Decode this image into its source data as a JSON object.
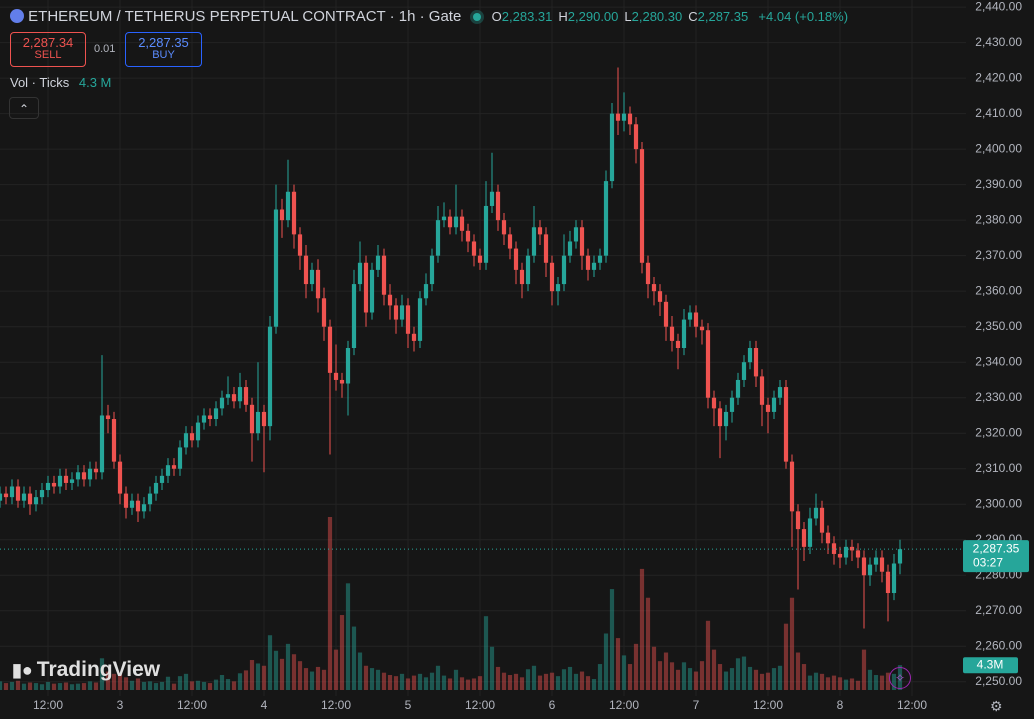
{
  "header": {
    "symbol": "ETHEREUM / TETHERUS PERPETUAL CONTRACT · 1h · Gate",
    "ohlc": [
      {
        "key": "O",
        "value": "2,283.31"
      },
      {
        "key": "H",
        "value": "2,290.00"
      },
      {
        "key": "L",
        "value": "2,280.30"
      },
      {
        "key": "C",
        "value": "2,287.35"
      }
    ],
    "change": "+4.04 (+0.18%)",
    "sell": {
      "price": "2,287.34",
      "label": "SELL"
    },
    "spread": "0.01",
    "buy": {
      "price": "2,287.35",
      "label": "BUY"
    },
    "volume_legend": {
      "name": "Vol · Ticks",
      "value": "4.3 M"
    }
  },
  "logo": "TradingView",
  "chart_data": {
    "type": "candlestick",
    "up_color": "#26a69a",
    "down_color": "#ef5350",
    "grid": true,
    "last_price_label": "2,287.35",
    "countdown": "03:27",
    "volume_scale_label": "4.3M",
    "xlim": [
      0,
      161
    ],
    "xticks": [
      {
        "value": 8,
        "label": "12:00"
      },
      {
        "value": 20,
        "label": "3"
      },
      {
        "value": 32,
        "label": "12:00"
      },
      {
        "value": 44,
        "label": "4"
      },
      {
        "value": 56,
        "label": "12:00"
      },
      {
        "value": 68,
        "label": "5"
      },
      {
        "value": 80,
        "label": "12:00"
      },
      {
        "value": 92,
        "label": "6"
      },
      {
        "value": 104,
        "label": "12:00"
      },
      {
        "value": 116,
        "label": "7"
      },
      {
        "value": 128,
        "label": "12:00"
      },
      {
        "value": 140,
        "label": "8"
      },
      {
        "value": 152,
        "label": "12:00"
      }
    ],
    "ylim": [
      2246,
      2442
    ],
    "yticks": [
      {
        "value": 2250,
        "label": "2,250.00"
      },
      {
        "value": 2260,
        "label": "2,260.00"
      },
      {
        "value": 2270,
        "label": "2,270.00"
      },
      {
        "value": 2280,
        "label": "2,280.00"
      },
      {
        "value": 2290,
        "label": "2,290.00"
      },
      {
        "value": 2300,
        "label": "2,300.00"
      },
      {
        "value": 2310,
        "label": "2,310.00"
      },
      {
        "value": 2320,
        "label": "2,320.00"
      },
      {
        "value": 2330,
        "label": "2,330.00"
      },
      {
        "value": 2340,
        "label": "2,340.00"
      },
      {
        "value": 2350,
        "label": "2,350.00"
      },
      {
        "value": 2360,
        "label": "2,360.00"
      },
      {
        "value": 2370,
        "label": "2,370.00"
      },
      {
        "value": 2380,
        "label": "2,380.00"
      },
      {
        "value": 2390,
        "label": "2,390.00"
      },
      {
        "value": 2400,
        "label": "2,400.00"
      },
      {
        "value": 2410,
        "label": "2,410.00"
      },
      {
        "value": 2420,
        "label": "2,420.00"
      },
      {
        "value": 2430,
        "label": "2,430.00"
      },
      {
        "value": 2440,
        "label": "2,440.00"
      }
    ],
    "open": [
      2301,
      2303,
      2302,
      2305,
      2301,
      2303,
      2300,
      2302,
      2304,
      2306,
      2305,
      2308,
      2306,
      2307,
      2309,
      2307,
      2310,
      2309,
      2325,
      2324,
      2312,
      2303,
      2299,
      2301,
      2298,
      2300,
      2303,
      2306,
      2308,
      2311,
      2310,
      2316,
      2320,
      2318,
      2323,
      2325,
      2324,
      2327,
      2330,
      2331,
      2329,
      2333,
      2328,
      2320,
      2326,
      2322,
      2350,
      2383,
      2380,
      2388,
      2376,
      2370,
      2362,
      2366,
      2358,
      2350,
      2337,
      2335,
      2334,
      2344,
      2362,
      2368,
      2354,
      2366,
      2370,
      2359,
      2356,
      2352,
      2356,
      2348,
      2346,
      2358,
      2362,
      2370,
      2380,
      2381,
      2378,
      2381,
      2377,
      2374,
      2370,
      2368,
      2384,
      2388,
      2380,
      2376,
      2372,
      2366,
      2362,
      2370,
      2378,
      2376,
      2368,
      2360,
      2362,
      2370,
      2374,
      2378,
      2370,
      2366,
      2368,
      2370,
      2391,
      2410,
      2408,
      2410,
      2407,
      2400,
      2368,
      2362,
      2360,
      2357,
      2350,
      2346,
      2344,
      2352,
      2354,
      2350,
      2349,
      2330,
      2327,
      2322,
      2326,
      2330,
      2335,
      2340,
      2344,
      2336,
      2328,
      2326,
      2330,
      2333,
      2312,
      2298,
      2293,
      2288,
      2296,
      2299,
      2292,
      2289,
      2286,
      2285,
      2288,
      2287,
      2285,
      2280,
      2283,
      2285,
      2281,
      2275,
      2283.31
    ],
    "high": [
      2305,
      2305,
      2307,
      2307,
      2305,
      2305,
      2304,
      2306,
      2308,
      2308,
      2310,
      2310,
      2309,
      2311,
      2311,
      2312,
      2312,
      2342,
      2328,
      2326,
      2314,
      2305,
      2303,
      2303,
      2302,
      2305,
      2308,
      2310,
      2313,
      2313,
      2318,
      2322,
      2322,
      2325,
      2327,
      2327,
      2329,
      2332,
      2336,
      2333,
      2337,
      2335,
      2330,
      2340,
      2328,
      2353,
      2390,
      2386,
      2397,
      2390,
      2378,
      2373,
      2368,
      2369,
      2361,
      2352,
      2345,
      2337,
      2346,
      2366,
      2374,
      2370,
      2368,
      2373,
      2372,
      2362,
      2358,
      2359,
      2358,
      2350,
      2360,
      2365,
      2372,
      2384,
      2385,
      2383,
      2390,
      2383,
      2379,
      2376,
      2372,
      2391,
      2399,
      2390,
      2382,
      2378,
      2374,
      2368,
      2372,
      2384,
      2380,
      2378,
      2370,
      2364,
      2376,
      2377,
      2380,
      2380,
      2372,
      2370,
      2372,
      2394,
      2413,
      2423,
      2416,
      2412,
      2409,
      2402,
      2370,
      2364,
      2362,
      2359,
      2353,
      2348,
      2355,
      2356,
      2356,
      2352,
      2351,
      2332,
      2329,
      2328,
      2332,
      2337,
      2342,
      2346,
      2346,
      2338,
      2330,
      2332,
      2335,
      2335,
      2314,
      2300,
      2295,
      2299,
      2303,
      2301,
      2294,
      2291,
      2288,
      2290,
      2290,
      2289,
      2287,
      2285,
      2287,
      2287,
      2283,
      2286,
      2290
    ],
    "low": [
      2299,
      2300,
      2300,
      2299,
      2299,
      2297,
      2298,
      2300,
      2302,
      2303,
      2303,
      2304,
      2304,
      2305,
      2305,
      2305,
      2307,
      2307,
      2320,
      2310,
      2300,
      2296,
      2297,
      2295,
      2296,
      2298,
      2301,
      2304,
      2306,
      2308,
      2308,
      2314,
      2316,
      2316,
      2321,
      2322,
      2322,
      2325,
      2328,
      2327,
      2327,
      2326,
      2312,
      2318,
      2309,
      2318,
      2348,
      2375,
      2378,
      2372,
      2366,
      2358,
      2360,
      2354,
      2346,
      2314,
      2332,
      2330,
      2325,
      2342,
      2360,
      2350,
      2352,
      2364,
      2356,
      2352,
      2348,
      2350,
      2344,
      2343,
      2344,
      2356,
      2360,
      2368,
      2378,
      2376,
      2376,
      2374,
      2371,
      2367,
      2366,
      2366,
      2382,
      2377,
      2373,
      2369,
      2362,
      2358,
      2360,
      2368,
      2373,
      2364,
      2356,
      2356,
      2360,
      2368,
      2372,
      2366,
      2363,
      2364,
      2366,
      2368,
      2389,
      2404,
      2405,
      2404,
      2396,
      2365,
      2358,
      2356,
      2353,
      2346,
      2343,
      2338,
      2342,
      2350,
      2347,
      2345,
      2327,
      2322,
      2313,
      2318,
      2323,
      2328,
      2333,
      2338,
      2333,
      2322,
      2320,
      2324,
      2328,
      2310,
      2288,
      2276,
      2284,
      2286,
      2294,
      2289,
      2286,
      2283,
      2282,
      2283,
      2284,
      2282,
      2265,
      2277,
      2281,
      2278,
      2267,
      2273,
      2280.3
    ],
    "close": [
      2303,
      2302,
      2305,
      2301,
      2303,
      2300,
      2302,
      2304,
      2306,
      2305,
      2308,
      2306,
      2307,
      2309,
      2307,
      2310,
      2309,
      2325,
      2324,
      2312,
      2303,
      2299,
      2301,
      2298,
      2300,
      2303,
      2306,
      2308,
      2311,
      2310,
      2316,
      2320,
      2318,
      2323,
      2325,
      2324,
      2327,
      2330,
      2331,
      2329,
      2333,
      2328,
      2320,
      2326,
      2322,
      2350,
      2383,
      2380,
      2388,
      2376,
      2370,
      2362,
      2366,
      2358,
      2350,
      2337,
      2335,
      2334,
      2344,
      2362,
      2368,
      2354,
      2366,
      2370,
      2359,
      2356,
      2352,
      2356,
      2348,
      2346,
      2358,
      2362,
      2370,
      2380,
      2381,
      2378,
      2381,
      2377,
      2374,
      2370,
      2368,
      2384,
      2388,
      2380,
      2376,
      2372,
      2366,
      2362,
      2370,
      2378,
      2376,
      2368,
      2360,
      2362,
      2370,
      2374,
      2378,
      2370,
      2366,
      2368,
      2370,
      2391,
      2410,
      2408,
      2410,
      2407,
      2400,
      2368,
      2362,
      2360,
      2357,
      2350,
      2346,
      2344,
      2352,
      2354,
      2350,
      2349,
      2330,
      2327,
      2322,
      2326,
      2330,
      2335,
      2340,
      2344,
      2336,
      2328,
      2326,
      2330,
      2333,
      2312,
      2298,
      2293,
      2288,
      2296,
      2299,
      2292,
      2289,
      2286,
      2285,
      2288,
      2287,
      2285,
      2280,
      2283,
      2285,
      2281,
      2275,
      2283.31,
      2287.35
    ],
    "volume": [
      1.5,
      1.2,
      1.4,
      1.6,
      1.1,
      1.3,
      1.2,
      1.0,
      1.4,
      1.1,
      1.2,
      1.3,
      1.0,
      1.1,
      1.2,
      1.5,
      1.3,
      5.5,
      3.2,
      2.8,
      3.0,
      2.2,
      1.6,
      2.0,
      1.4,
      1.5,
      1.2,
      1.4,
      2.3,
      1.1,
      2.4,
      2.8,
      1.5,
      1.6,
      1.4,
      1.2,
      1.8,
      2.6,
      1.9,
      1.5,
      2.9,
      3.4,
      5.2,
      4.6,
      4.2,
      9.5,
      6.8,
      5.4,
      8.0,
      6.2,
      5.0,
      3.8,
      3.2,
      4.0,
      3.5,
      30.0,
      7.0,
      13.0,
      18.5,
      11.0,
      6.5,
      4.2,
      3.8,
      3.5,
      3.0,
      2.6,
      2.4,
      2.8,
      2.0,
      2.5,
      2.8,
      2.2,
      3.0,
      4.2,
      2.5,
      2.0,
      3.5,
      2.2,
      1.8,
      2.0,
      2.4,
      12.8,
      7.5,
      4.0,
      3.0,
      2.6,
      2.8,
      2.2,
      3.6,
      4.2,
      2.5,
      2.8,
      3.0,
      2.4,
      3.6,
      4.0,
      2.8,
      3.2,
      2.4,
      1.9,
      4.5,
      9.8,
      17.5,
      9.0,
      6.0,
      4.5,
      8.0,
      21.0,
      16.0,
      7.5,
      5.0,
      6.5,
      4.8,
      3.5,
      4.8,
      3.8,
      3.2,
      5.0,
      12.0,
      7.0,
      4.5,
      3.2,
      3.8,
      5.5,
      5.8,
      4.0,
      3.5,
      2.8,
      3.0,
      3.8,
      4.2,
      11.5,
      16.0,
      6.5,
      4.5,
      2.5,
      3.0,
      2.8,
      2.2,
      2.5,
      2.2,
      1.8,
      2.0,
      1.6,
      7.0,
      3.5,
      2.6,
      2.5,
      3.0,
      2.8,
      4.3
    ]
  }
}
